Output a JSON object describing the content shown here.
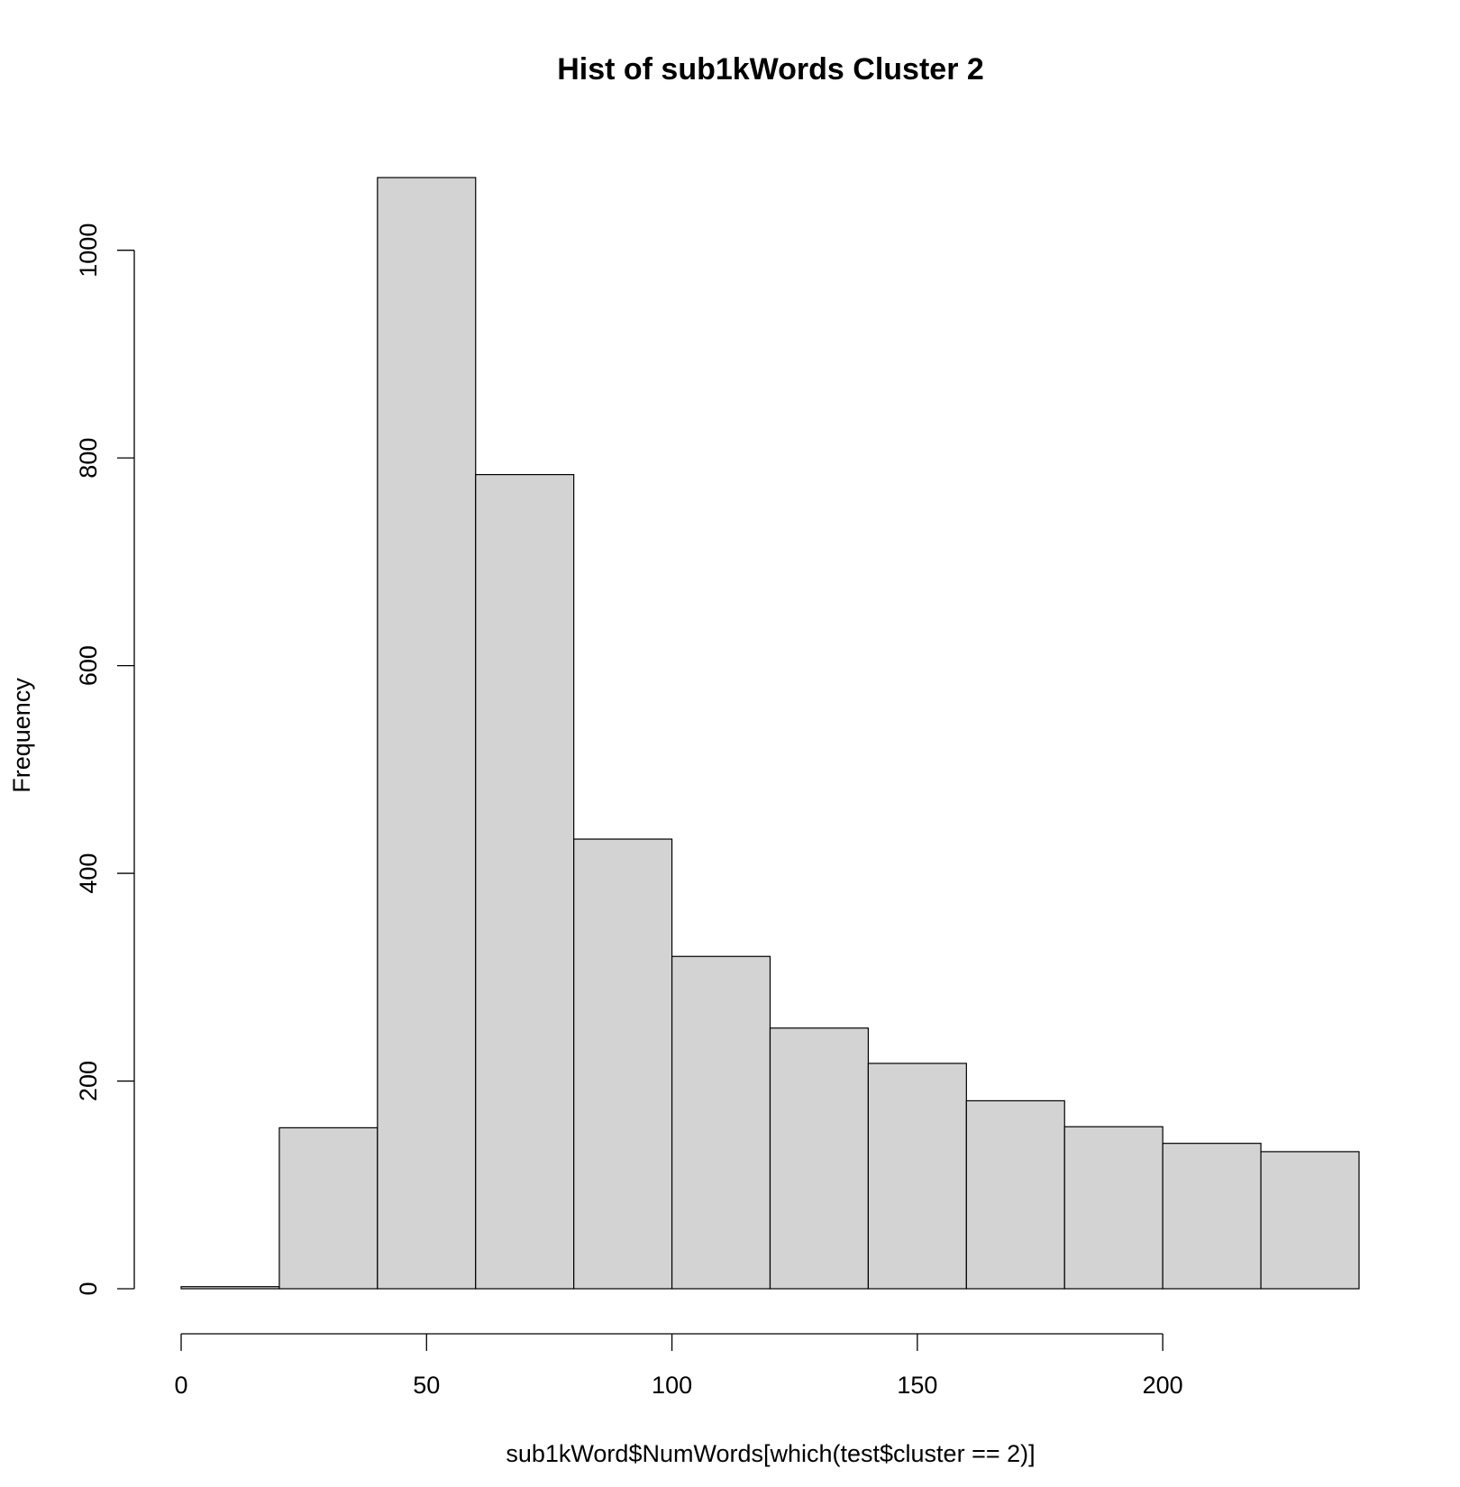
{
  "chart_data": {
    "type": "bar",
    "title": "Hist of sub1kWords Cluster 2",
    "xlabel": "sub1kWord$NumWords[which(test$cluster == 2)]",
    "ylabel": "Frequency",
    "bins": [
      {
        "start": 0,
        "end": 20,
        "count": 2
      },
      {
        "start": 20,
        "end": 40,
        "count": 155
      },
      {
        "start": 40,
        "end": 60,
        "count": 1070
      },
      {
        "start": 60,
        "end": 80,
        "count": 784
      },
      {
        "start": 80,
        "end": 100,
        "count": 433
      },
      {
        "start": 100,
        "end": 120,
        "count": 320
      },
      {
        "start": 120,
        "end": 140,
        "count": 251
      },
      {
        "start": 140,
        "end": 160,
        "count": 217
      },
      {
        "start": 160,
        "end": 180,
        "count": 181
      },
      {
        "start": 180,
        "end": 200,
        "count": 156
      },
      {
        "start": 200,
        "end": 220,
        "count": 140
      },
      {
        "start": 220,
        "end": 240,
        "count": 132
      }
    ],
    "xticks": [
      0,
      50,
      100,
      150,
      200
    ],
    "xtick_labels": [
      "0",
      "50",
      "100",
      "150",
      "200"
    ],
    "yticks": [
      0,
      200,
      400,
      600,
      800,
      1000
    ],
    "ytick_labels": [
      "0",
      "200",
      "400",
      "600",
      "800",
      "1000"
    ],
    "xlim": [
      0,
      240
    ],
    "ylim": [
      0,
      1070
    ],
    "grid": false,
    "colors": {
      "bar_fill": "#d3d3d3",
      "bar_stroke": "#000000"
    }
  }
}
